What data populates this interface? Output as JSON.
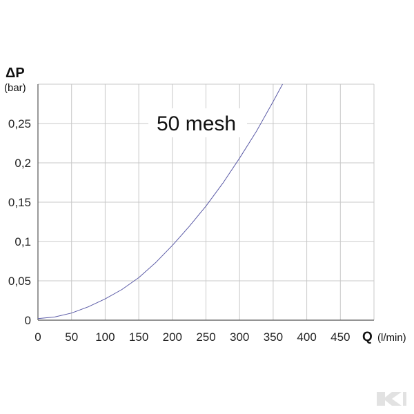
{
  "chart_data": {
    "type": "line",
    "title": "",
    "annotation": "50 mesh",
    "y_symbol": "ΔP",
    "y_unit": "(bar)",
    "x_symbol": "Q",
    "x_unit": "(l/min)",
    "xlim": [
      0,
      500
    ],
    "ylim": [
      0,
      0.3
    ],
    "x_ticks": [
      {
        "value": 0,
        "label": "0"
      },
      {
        "value": 50,
        "label": "50"
      },
      {
        "value": 100,
        "label": "100"
      },
      {
        "value": 150,
        "label": "150"
      },
      {
        "value": 200,
        "label": "200"
      },
      {
        "value": 250,
        "label": "250"
      },
      {
        "value": 300,
        "label": "300"
      },
      {
        "value": 350,
        "label": "350"
      },
      {
        "value": 400,
        "label": "400"
      },
      {
        "value": 450,
        "label": "450"
      }
    ],
    "y_ticks": [
      {
        "value": 0,
        "label": "0"
      },
      {
        "value": 0.05,
        "label": "0,05"
      },
      {
        "value": 0.1,
        "label": "0,1"
      },
      {
        "value": 0.15,
        "label": "0,15"
      },
      {
        "value": 0.2,
        "label": "0,2"
      },
      {
        "value": 0.25,
        "label": "0,25"
      }
    ],
    "grid": true,
    "series": [
      {
        "color": "#5a5aa6",
        "x": [
          0,
          25,
          50,
          75,
          100,
          125,
          150,
          175,
          200,
          225,
          250,
          275,
          300,
          325,
          350,
          364
        ],
        "y": [
          0.002,
          0.004,
          0.009,
          0.017,
          0.027,
          0.039,
          0.054,
          0.073,
          0.095,
          0.119,
          0.145,
          0.174,
          0.206,
          0.24,
          0.278,
          0.3
        ]
      }
    ]
  },
  "colors": {
    "grid": "#c8c8c8",
    "axis": "#555555",
    "curve": "#5a5aa6",
    "watermark": "#e2e2e2"
  },
  "watermark_icon": "brand-logo-icon"
}
